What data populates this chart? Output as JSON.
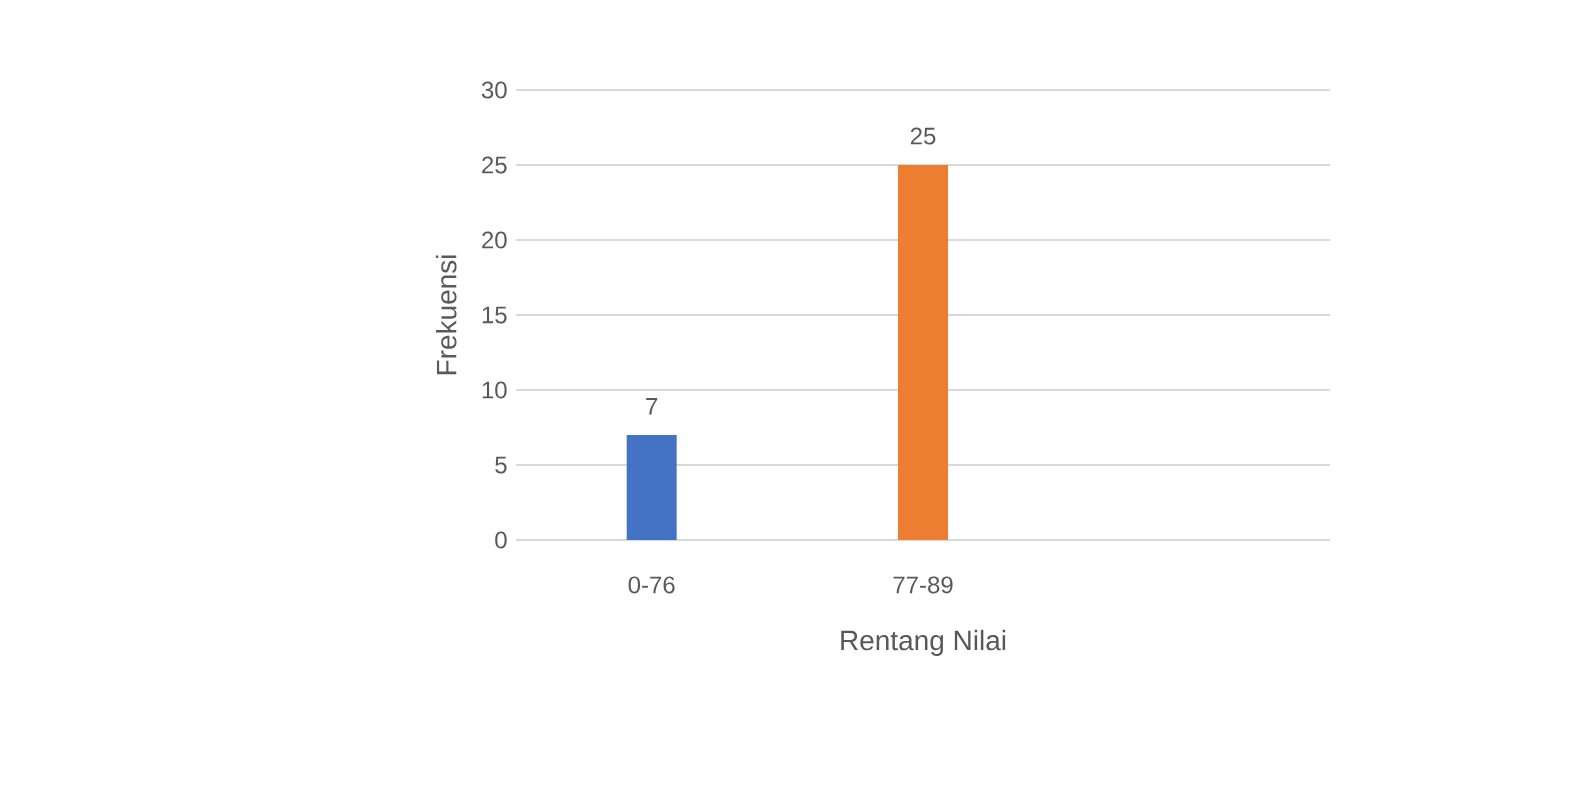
{
  "chart_data": {
    "type": "bar",
    "xlabel": "Rentang Nilai",
    "ylabel": "Frekuensi",
    "categories": [
      "0-76",
      "77-89",
      null
    ],
    "values": [
      7,
      25,
      null
    ],
    "colors": [
      "#4472c4",
      "#ed7d31",
      "#a5a5a5"
    ],
    "ylim": [
      0,
      30
    ],
    "yticks": [
      0,
      5,
      10,
      15,
      20,
      25,
      30
    ],
    "grid": "y",
    "data_labels": true
  }
}
